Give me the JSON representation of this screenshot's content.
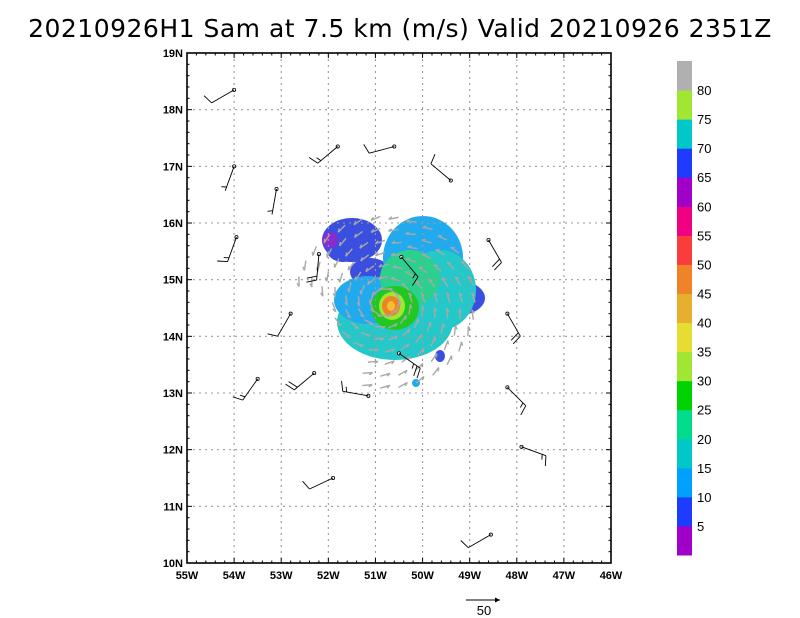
{
  "title": "20210926H1 Sam at 7.5 km (m/s) Valid 20210926 2351Z",
  "chart_data": {
    "type": "heatmap",
    "xlabel": "",
    "ylabel": "",
    "x_ticks": [
      "55W",
      "54W",
      "53W",
      "52W",
      "51W",
      "50W",
      "49W",
      "48W",
      "47W",
      "46W"
    ],
    "y_ticks": [
      "10N",
      "11N",
      "12N",
      "13N",
      "14N",
      "15N",
      "16N",
      "17N",
      "18N",
      "19N"
    ],
    "xlim": [
      -55,
      -46
    ],
    "ylim": [
      10,
      19
    ],
    "grid": true,
    "colorbar": {
      "labels": [
        "5",
        "10",
        "15",
        "20",
        "25",
        "30",
        "35",
        "40",
        "45",
        "50",
        "55",
        "60",
        "65",
        "70",
        "75",
        "80"
      ],
      "colors": [
        "#a000c8",
        "#1e3cff",
        "#00a0ff",
        "#00c8c8",
        "#00dc8c",
        "#00d200",
        "#a0e632",
        "#e6dc32",
        "#e6af2d",
        "#f08228",
        "#fa3c3c",
        "#f00082",
        "#a000c8",
        "#1e3cff",
        "#00c8c8",
        "#a0e632",
        "#b0b0b0"
      ]
    },
    "reference_vector": {
      "label": "50"
    },
    "storm_center": {
      "lon": -50.8,
      "lat": 14.6
    },
    "max_wind": 64,
    "wind_barbs": [
      {
        "lon": -54.0,
        "lat": 18.35,
        "speed": 10,
        "dir": 240
      },
      {
        "lon": -51.8,
        "lat": 17.35,
        "speed": 15,
        "dir": 230
      },
      {
        "lon": -50.6,
        "lat": 17.35,
        "speed": 10,
        "dir": 255
      },
      {
        "lon": -54.0,
        "lat": 17.0,
        "speed": 5,
        "dir": 200
      },
      {
        "lon": -53.1,
        "lat": 16.6,
        "speed": 5,
        "dir": 190
      },
      {
        "lon": -49.4,
        "lat": 16.75,
        "speed": 10,
        "dir": 310
      },
      {
        "lon": -53.95,
        "lat": 15.75,
        "speed": 15,
        "dir": 200
      },
      {
        "lon": -52.2,
        "lat": 15.45,
        "speed": 20,
        "dir": 185
      },
      {
        "lon": -48.6,
        "lat": 15.7,
        "speed": 20,
        "dir": 150
      },
      {
        "lon": -50.45,
        "lat": 15.4,
        "speed": 15,
        "dir": 140
      },
      {
        "lon": -52.8,
        "lat": 14.4,
        "speed": 10,
        "dir": 210
      },
      {
        "lon": -48.2,
        "lat": 14.4,
        "speed": 20,
        "dir": 150
      },
      {
        "lon": -53.5,
        "lat": 13.25,
        "speed": 15,
        "dir": 215
      },
      {
        "lon": -52.3,
        "lat": 13.35,
        "speed": 20,
        "dir": 230
      },
      {
        "lon": -50.5,
        "lat": 13.7,
        "speed": 25,
        "dir": 125
      },
      {
        "lon": -51.15,
        "lat": 12.95,
        "speed": 15,
        "dir": 280
      },
      {
        "lon": -48.2,
        "lat": 13.1,
        "speed": 15,
        "dir": 135
      },
      {
        "lon": -47.9,
        "lat": 12.05,
        "speed": 15,
        "dir": 110
      },
      {
        "lon": -51.9,
        "lat": 11.5,
        "speed": 10,
        "dir": 245
      },
      {
        "lon": -48.55,
        "lat": 10.5,
        "speed": 10,
        "dir": 240
      }
    ]
  }
}
